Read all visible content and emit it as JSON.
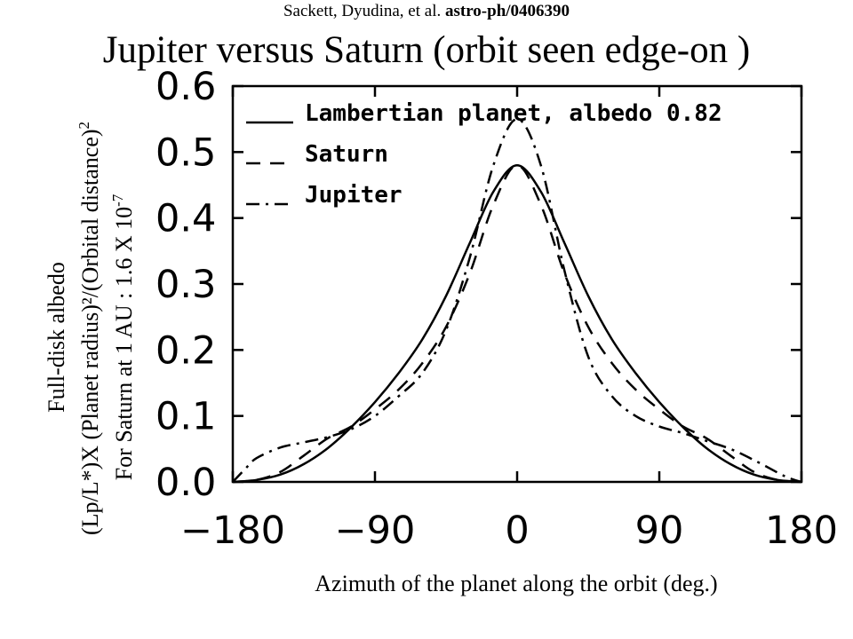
{
  "citation": {
    "authors": "Sackett, Dyudina, et al.",
    "ref": "astro-ph/0406390"
  },
  "chart_data": {
    "type": "line",
    "title": "Jupiter versus Saturn (orbit seen edge-on )",
    "xlabel": "Azimuth of the planet along the orbit (deg.)",
    "ylabel_lines": [
      "Full-disk albedo",
      "(Lp/L*)X (Planet radius)²/(Orbital distance)",
      "For Saturn at 1 AU : 1.6 X 10"
    ],
    "ylabel_sup_2": "2",
    "ylabel_sup_3": "-7",
    "xlim": [
      -180,
      180
    ],
    "ylim": [
      0,
      0.6
    ],
    "xticks": [
      -180,
      -90,
      0,
      90,
      180
    ],
    "xtick_labels": [
      "−180",
      "−90",
      "0",
      "90",
      "180"
    ],
    "yticks": [
      0.0,
      0.1,
      0.2,
      0.3,
      0.4,
      0.5,
      0.6
    ],
    "ytick_labels": [
      "0.0",
      "0.1",
      "0.2",
      "0.3",
      "0.4",
      "0.5",
      "0.6"
    ],
    "legend_position": "top-left",
    "series": [
      {
        "name": "Lambertian planet, albedo 0.82",
        "style": "solid",
        "x": [
          -180,
          -165,
          -150,
          -135,
          -120,
          -105,
          -90,
          -75,
          -60,
          -45,
          -30,
          -15,
          0,
          15,
          30,
          45,
          60,
          75,
          90,
          105,
          120,
          135,
          150,
          165,
          180
        ],
        "y": [
          0.0,
          0.003,
          0.011,
          0.027,
          0.051,
          0.083,
          0.121,
          0.165,
          0.216,
          0.282,
          0.362,
          0.44,
          0.48,
          0.44,
          0.362,
          0.282,
          0.216,
          0.165,
          0.121,
          0.083,
          0.051,
          0.027,
          0.011,
          0.003,
          0.0
        ]
      },
      {
        "name": "Saturn",
        "style": "dashed",
        "x": [
          -180,
          -165,
          -150,
          -135,
          -120,
          -105,
          -90,
          -75,
          -60,
          -45,
          -30,
          -15,
          0,
          15,
          30,
          45,
          60,
          75,
          90,
          105,
          120,
          135,
          150,
          165,
          180
        ],
        "y": [
          0.0,
          0.003,
          0.015,
          0.04,
          0.066,
          0.084,
          0.11,
          0.14,
          0.18,
          0.235,
          0.316,
          0.42,
          0.48,
          0.42,
          0.316,
          0.235,
          0.18,
          0.14,
          0.11,
          0.084,
          0.066,
          0.04,
          0.015,
          0.003,
          0.0
        ]
      },
      {
        "name": "Jupiter",
        "style": "dashdot",
        "x": [
          -180,
          -172,
          -165,
          -150,
          -135,
          -120,
          -105,
          -90,
          -75,
          -60,
          -45,
          -30,
          -15,
          0,
          15,
          30,
          45,
          60,
          75,
          90,
          105,
          120,
          135,
          150,
          165,
          172,
          180
        ],
        "y": [
          0.0,
          0.02,
          0.036,
          0.052,
          0.06,
          0.068,
          0.08,
          0.1,
          0.13,
          0.165,
          0.23,
          0.34,
          0.48,
          0.55,
          0.48,
          0.32,
          0.19,
          0.13,
          0.1,
          0.084,
          0.074,
          0.062,
          0.05,
          0.033,
          0.014,
          0.006,
          0.0
        ]
      }
    ]
  }
}
